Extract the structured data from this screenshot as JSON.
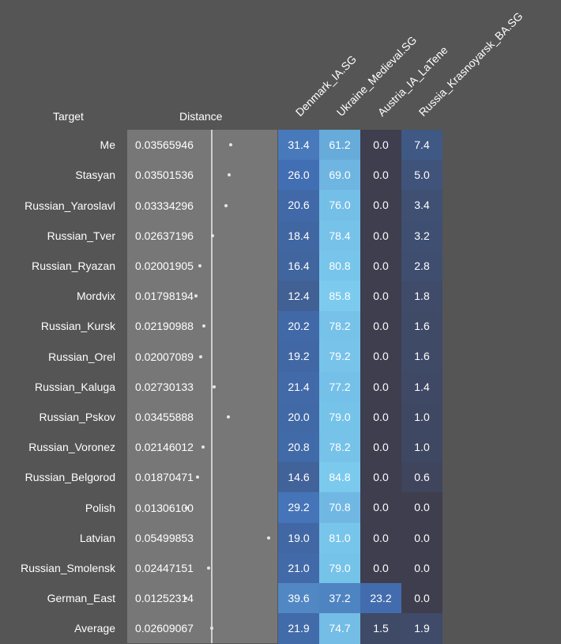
{
  "header": {
    "target_label": "Target",
    "distance_label": "Distance"
  },
  "chart_data": {
    "type": "heatmap",
    "title": "",
    "columns": [
      "Denmark_IA.SG",
      "Ukraine_Medieval.SG",
      "Austria_IA_LaTene",
      "Russia_Krasnoyarsk_BA.SG"
    ],
    "rows": [
      {
        "target": "Me",
        "distance": "0.03565946",
        "values": [
          31.4,
          61.2,
          0.0,
          7.4
        ]
      },
      {
        "target": "Stasyan",
        "distance": "0.03501536",
        "values": [
          26.0,
          69.0,
          0.0,
          5.0
        ]
      },
      {
        "target": "Russian_Yaroslavl",
        "distance": "0.03334296",
        "values": [
          20.6,
          76.0,
          0.0,
          3.4
        ]
      },
      {
        "target": "Russian_Tver",
        "distance": "0.02637196",
        "values": [
          18.4,
          78.4,
          0.0,
          3.2
        ]
      },
      {
        "target": "Russian_Ryazan",
        "distance": "0.02001905",
        "values": [
          16.4,
          80.8,
          0.0,
          2.8
        ]
      },
      {
        "target": "Mordvix",
        "distance": "0.01798194",
        "values": [
          12.4,
          85.8,
          0.0,
          1.8
        ]
      },
      {
        "target": "Russian_Kursk",
        "distance": "0.02190988",
        "values": [
          20.2,
          78.2,
          0.0,
          1.6
        ]
      },
      {
        "target": "Russian_Orel",
        "distance": "0.02007089",
        "values": [
          19.2,
          79.2,
          0.0,
          1.6
        ]
      },
      {
        "target": "Russian_Kaluga",
        "distance": "0.02730133",
        "values": [
          21.4,
          77.2,
          0.0,
          1.4
        ]
      },
      {
        "target": "Russian_Pskov",
        "distance": "0.03455888",
        "values": [
          20.0,
          79.0,
          0.0,
          1.0
        ]
      },
      {
        "target": "Russian_Voronez",
        "distance": "0.02146012",
        "values": [
          20.8,
          78.2,
          0.0,
          1.0
        ]
      },
      {
        "target": "Russian_Belgorod",
        "distance": "0.01870471",
        "values": [
          14.6,
          84.8,
          0.0,
          0.6
        ]
      },
      {
        "target": "Polish",
        "distance": "0.01306100",
        "values": [
          29.2,
          70.8,
          0.0,
          0.0
        ]
      },
      {
        "target": "Latvian",
        "distance": "0.05499853",
        "values": [
          19.0,
          81.0,
          0.0,
          0.0
        ]
      },
      {
        "target": "Russian_Smolensk",
        "distance": "0.02447151",
        "values": [
          21.0,
          79.0,
          0.0,
          0.0
        ]
      },
      {
        "target": "German_East",
        "distance": "0.01252314",
        "values": [
          39.6,
          37.2,
          23.2,
          0.0
        ]
      },
      {
        "target": "Average",
        "distance": "0.02609067",
        "values": [
          21.9,
          74.7,
          1.5,
          1.9
        ]
      }
    ],
    "colors": {
      "background": "#555555",
      "distance_panel": "#777777",
      "low": "#3e3e4e",
      "mid": "#4270b5",
      "high": "#7fd0f2"
    }
  }
}
